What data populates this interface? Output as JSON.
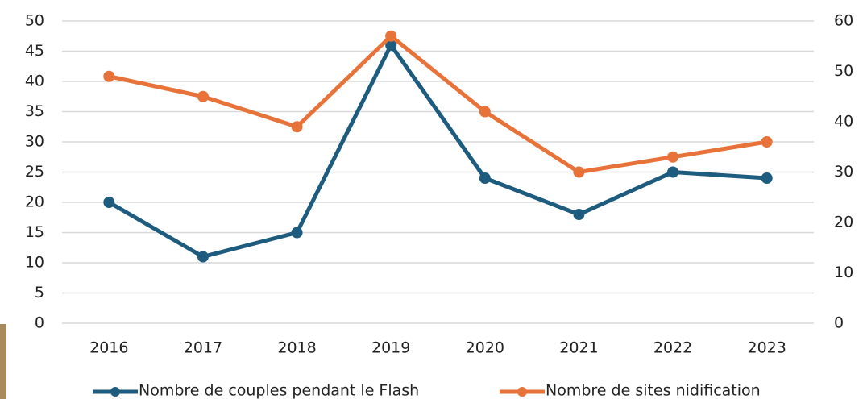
{
  "chart_data": {
    "type": "line",
    "categories": [
      "2016",
      "2017",
      "2018",
      "2019",
      "2020",
      "2021",
      "2022",
      "2023"
    ],
    "series": [
      {
        "name": "Nombre de couples pendant le Flash",
        "color": "#1d5c7e",
        "values": [
          20,
          11,
          15,
          46,
          24,
          18,
          25,
          24
        ]
      },
      {
        "name": "Nombre de sites nidification",
        "color": "#e8733a",
        "axis": "y2",
        "values": [
          49,
          45,
          39,
          57,
          42,
          30,
          33,
          36
        ]
      }
    ],
    "ylim": [
      0,
      50
    ],
    "yticks": [
      0,
      5,
      10,
      15,
      20,
      25,
      30,
      35,
      40,
      45,
      50
    ],
    "y2lim": [
      0,
      60
    ],
    "y2ticks": [
      0,
      10,
      20,
      30,
      40,
      50,
      60
    ],
    "grid": true,
    "legend": "bottom"
  }
}
